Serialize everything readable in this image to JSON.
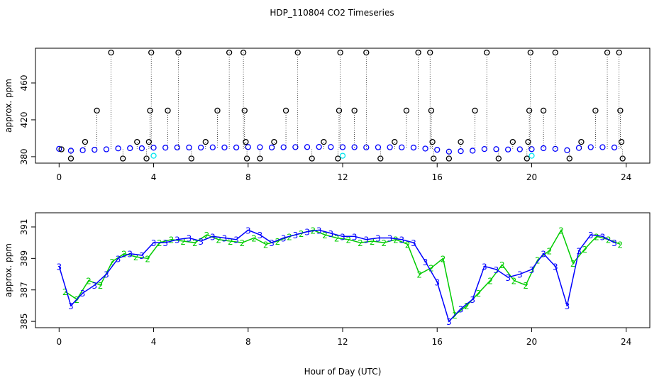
{
  "title": "HDP_110804  CO2 Timeseries",
  "chart_data": [
    {
      "type": "scatter",
      "ylabel": "approx. ppm",
      "xlim": [
        -1,
        25
      ],
      "xticks": [
        0,
        4,
        8,
        12,
        16,
        20,
        24
      ],
      "ylim": [
        373,
        497.7
      ],
      "yticks": [
        380,
        420,
        460
      ],
      "series": [
        {
          "color": "#0000ff",
          "spikes": false,
          "x": [
            0.0,
            0.5,
            1.0,
            1.5,
            2.0,
            2.5,
            3.0,
            3.5,
            4.0,
            4.5,
            5.0,
            5.5,
            6.0,
            6.5,
            7.0,
            7.5,
            8.0,
            8.5,
            9.0,
            9.5,
            10.0,
            10.5,
            11.0,
            11.5,
            12.0,
            12.5,
            13.0,
            13.5,
            14.0,
            14.5,
            15.0,
            15.5,
            16.0,
            16.5,
            17.0,
            17.5,
            18.0,
            18.5,
            19.0,
            19.5,
            20.0,
            20.5,
            21.0,
            21.5,
            22.0,
            22.5,
            23.0,
            23.5
          ],
          "values": [
            388.5,
            386.5,
            387,
            387.5,
            388,
            389,
            389.2,
            389.1,
            389.8,
            389.8,
            390,
            390,
            389.9,
            390.1,
            390,
            390,
            390.5,
            390.3,
            390,
            390.2,
            390.4,
            390.5,
            390.6,
            390.5,
            390.3,
            390.3,
            390.1,
            390.2,
            390.2,
            390.1,
            389.9,
            388.8,
            387.5,
            385.5,
            386,
            386.5,
            388.3,
            388.2,
            387.8,
            388,
            388.2,
            389.2,
            388.5,
            387,
            389.5,
            390.3,
            390.3,
            390
          ]
        },
        {
          "color": "#000000",
          "spikes": true,
          "x": [
            0.1,
            0.5,
            1.1,
            1.6,
            2.2,
            2.7,
            3.3,
            3.7,
            3.8,
            3.85,
            3.9,
            4.6,
            5.05,
            5.6,
            6.2,
            6.7,
            7.2,
            7.8,
            7.85,
            7.9,
            7.95,
            8.5,
            9.1,
            9.6,
            10.1,
            10.7,
            11.2,
            11.8,
            11.85,
            11.9,
            12.5,
            13.0,
            13.6,
            14.2,
            14.7,
            15.2,
            15.7,
            15.75,
            15.8,
            15.85,
            16.5,
            17.0,
            17.6,
            18.1,
            18.6,
            19.2,
            19.8,
            19.85,
            19.9,
            19.95,
            20.5,
            21.0,
            21.6,
            22.1,
            22.7,
            23.2,
            23.7,
            23.75,
            23.8,
            23.85
          ],
          "values": [
            388,
            378,
            396,
            430,
            493,
            378,
            396,
            378,
            396,
            430,
            493,
            430,
            493,
            378,
            396,
            430,
            493,
            493,
            430,
            396,
            378,
            378,
            396,
            430,
            493,
            378,
            396,
            378,
            430,
            493,
            430,
            493,
            378,
            396,
            430,
            493,
            493,
            430,
            396,
            378,
            378,
            396,
            430,
            493,
            378,
            396,
            378,
            396,
            430,
            493,
            430,
            493,
            378,
            396,
            430,
            493,
            493,
            430,
            396,
            378
          ]
        },
        {
          "color": "#00e5ee",
          "spikes": false,
          "x": [
            4.0,
            12.0,
            20.0
          ],
          "values": [
            381,
            381,
            381
          ]
        }
      ]
    },
    {
      "type": "line",
      "ylabel": "approx. ppm",
      "xlabel": "Hour of Day (UTC)",
      "xlim": [
        -1,
        25
      ],
      "xticks": [
        0,
        4,
        8,
        12,
        16,
        20,
        24
      ],
      "ylim": [
        384.6,
        391.9
      ],
      "yticks": [
        385,
        387,
        389,
        391
      ],
      "series": [
        {
          "color": "#00cc00",
          "marker": "2",
          "x": [
            0.25,
            0.75,
            1.25,
            1.75,
            2.25,
            2.75,
            3.25,
            3.75,
            4.25,
            4.75,
            5.25,
            5.75,
            6.25,
            6.75,
            7.25,
            7.75,
            8.25,
            8.75,
            9.25,
            9.75,
            10.25,
            10.75,
            11.25,
            11.75,
            12.25,
            12.75,
            13.25,
            13.75,
            14.25,
            14.75,
            15.25,
            15.75,
            16.25,
            16.75,
            17.25,
            17.75,
            18.25,
            18.75,
            19.25,
            19.75,
            20.25,
            20.75,
            21.25,
            21.75,
            22.25,
            22.75,
            23.25,
            23.75
          ],
          "values": [
            386.9,
            386.4,
            387.6,
            387.3,
            388.8,
            389.3,
            389.1,
            389.0,
            390.0,
            390.2,
            390.1,
            390.0,
            390.5,
            390.2,
            390.1,
            390.0,
            390.3,
            389.9,
            390.1,
            390.4,
            390.6,
            390.8,
            390.5,
            390.3,
            390.2,
            390.0,
            390.1,
            390.0,
            390.2,
            389.9,
            388.0,
            388.4,
            389.0,
            385.4,
            386.0,
            386.8,
            387.6,
            388.6,
            387.6,
            387.3,
            388.9,
            389.5,
            390.8,
            388.7,
            389.6,
            390.4,
            390.2,
            389.9
          ]
        },
        {
          "color": "#0000ff",
          "marker": "3",
          "x": [
            0.0,
            0.5,
            1.0,
            1.5,
            2.0,
            2.5,
            3.0,
            3.5,
            4.0,
            4.5,
            5.0,
            5.5,
            6.0,
            6.5,
            7.0,
            7.5,
            8.0,
            8.5,
            9.0,
            9.5,
            10.0,
            10.5,
            11.0,
            11.5,
            12.0,
            12.5,
            13.0,
            13.5,
            14.0,
            14.5,
            15.0,
            15.5,
            16.0,
            16.5,
            17.0,
            17.5,
            18.0,
            18.5,
            19.0,
            19.5,
            20.0,
            20.5,
            21.0,
            21.5,
            22.0,
            22.5,
            23.0,
            23.5
          ],
          "values": [
            388.5,
            386.0,
            386.8,
            387.3,
            388.0,
            389.0,
            389.3,
            389.2,
            390.0,
            390.0,
            390.2,
            390.3,
            390.1,
            390.4,
            390.3,
            390.2,
            390.8,
            390.5,
            390.0,
            390.3,
            390.5,
            390.7,
            390.8,
            390.6,
            390.4,
            390.4,
            390.2,
            390.3,
            390.3,
            390.2,
            390.0,
            388.8,
            387.5,
            385.0,
            385.8,
            386.4,
            388.5,
            388.3,
            387.8,
            388.0,
            388.3,
            389.3,
            388.5,
            386.0,
            389.5,
            390.5,
            390.4,
            390.0
          ]
        }
      ]
    }
  ]
}
